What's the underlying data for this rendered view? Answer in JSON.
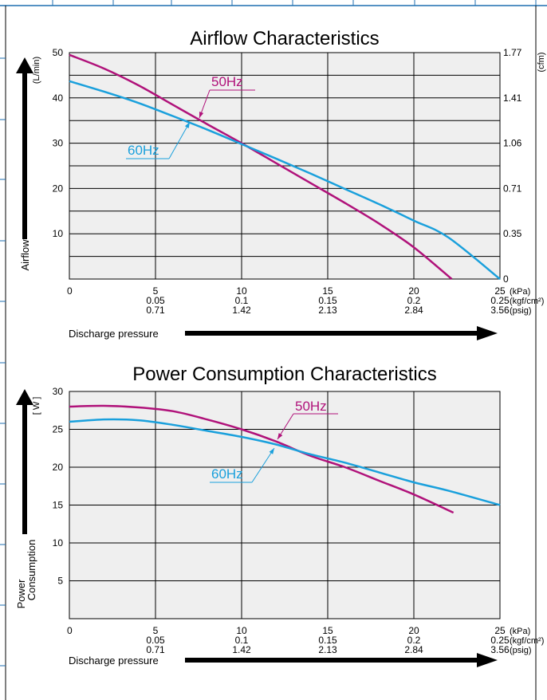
{
  "colors": {
    "line_50hz": "#b0127a",
    "line_60hz": "#1aa0dc",
    "plot_bg": "#efefef",
    "grid": "#000000",
    "frame": "#1f6fb0"
  },
  "chart_data": [
    {
      "type": "line",
      "title": "Airflow Characteristics",
      "ylabel": "Airflow",
      "yunit_left": "(L/min)",
      "yunit_right": "(cfm)",
      "xlabel": "Discharge pressure",
      "x_ticks_kpa": [
        "0",
        "5",
        "10",
        "15",
        "20",
        "25"
      ],
      "x_ticks_kgf": [
        "0.05",
        "0.1",
        "0.15",
        "0.2",
        "0.25"
      ],
      "x_ticks_psig": [
        "0.71",
        "1.42",
        "2.13",
        "2.84",
        "3.56"
      ],
      "x_units": [
        "(kPa)",
        "(kgf/cm²)",
        "(psig)"
      ],
      "y_ticks_left": [
        "10",
        "20",
        "30",
        "40",
        "50"
      ],
      "y_ticks_right": [
        "0",
        "0.35",
        "0.71",
        "1.06",
        "1.41",
        "1.77"
      ],
      "xlim": [
        0,
        25
      ],
      "ylim": [
        0,
        50
      ],
      "grid": true,
      "series": [
        {
          "name": "50Hz",
          "x": [
            0,
            2,
            4,
            6,
            8,
            10,
            12,
            14,
            16,
            18,
            20,
            22.2
          ],
          "y": [
            49.5,
            46.5,
            42.8,
            38.5,
            34.2,
            30.0,
            25.6,
            21.2,
            16.8,
            12.2,
            7.0,
            0
          ]
        },
        {
          "name": "60Hz",
          "x": [
            0,
            2,
            4,
            6,
            8,
            10,
            12,
            14,
            16,
            18,
            20,
            22,
            25
          ],
          "y": [
            43.7,
            41.4,
            38.9,
            36.0,
            33.0,
            29.8,
            26.6,
            23.3,
            19.9,
            16.5,
            12.9,
            9.2,
            0
          ]
        }
      ]
    },
    {
      "type": "line",
      "title": "Power Consumption Characteristics",
      "ylabel": "Power Consumption",
      "ylabel_line1": "Power",
      "ylabel_line2": "Consumption",
      "yunit_left": "[ W ]",
      "xlabel": "Discharge pressure",
      "x_ticks_kpa": [
        "0",
        "5",
        "10",
        "15",
        "20",
        "25"
      ],
      "x_ticks_kgf": [
        "0.05",
        "0.1",
        "0.15",
        "0.2",
        "0.25"
      ],
      "x_ticks_psig": [
        "0.71",
        "1.42",
        "2.13",
        "2.84",
        "3.56"
      ],
      "x_units": [
        "(kPa)",
        "(kgf/cm²)",
        "(psig)"
      ],
      "y_ticks_left": [
        "5",
        "10",
        "15",
        "20",
        "25",
        "30"
      ],
      "xlim": [
        0,
        25
      ],
      "ylim": [
        0,
        30
      ],
      "grid": true,
      "series": [
        {
          "name": "50Hz",
          "x": [
            0,
            2,
            4,
            6,
            8,
            10,
            12,
            14,
            16,
            18,
            20,
            22.3
          ],
          "y": [
            28.0,
            28.1,
            27.9,
            27.4,
            26.3,
            25.0,
            23.4,
            21.5,
            20.0,
            18.2,
            16.4,
            14.0
          ]
        },
        {
          "name": "60Hz",
          "x": [
            0,
            2,
            4,
            6,
            8,
            10,
            12,
            14,
            16,
            18,
            20,
            22,
            25
          ],
          "y": [
            26.0,
            26.3,
            26.2,
            25.6,
            24.8,
            24.0,
            23.0,
            21.7,
            20.6,
            19.3,
            18.0,
            16.9,
            15.0
          ]
        }
      ]
    }
  ],
  "annotations": [
    {
      "chart": 0,
      "series": "50Hz",
      "label": "50Hz"
    },
    {
      "chart": 0,
      "series": "60Hz",
      "label": "60Hz"
    },
    {
      "chart": 1,
      "series": "50Hz",
      "label": "50Hz"
    },
    {
      "chart": 1,
      "series": "60Hz",
      "label": "60Hz"
    }
  ]
}
